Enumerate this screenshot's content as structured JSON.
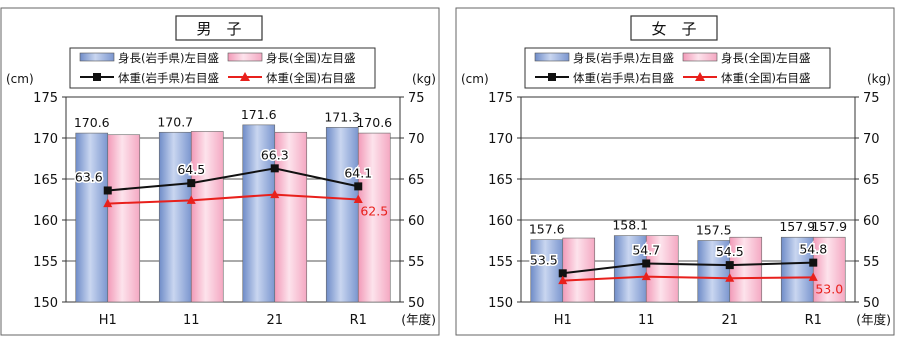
{
  "chart_data": [
    {
      "type": "bar",
      "title": "男　子",
      "categories": [
        "H1",
        "11",
        "21",
        "R1"
      ],
      "xlabel": "(年度)",
      "y_left_unit": "(cm)",
      "y_right_unit": "(kg)",
      "ylim_left": [
        150,
        175
      ],
      "ylim_right": [
        50,
        75
      ],
      "left_ticks": [
        150,
        155,
        160,
        165,
        170,
        175
      ],
      "right_ticks": [
        50,
        55,
        60,
        65,
        70,
        75
      ],
      "grid": true,
      "legend_placement": "top",
      "bar_series": [
        {
          "name": "身長(岩手県)左目盛",
          "values": [
            170.6,
            170.7,
            171.6,
            171.3
          ],
          "color": "#8aa4d6",
          "labels": [
            "170.6",
            "170.7",
            "171.6",
            "171.3"
          ]
        },
        {
          "name": "身長(全国)左目盛",
          "values": [
            170.4,
            170.8,
            170.7,
            170.6
          ],
          "color": "#f3b8cc",
          "labels": [
            "",
            "",
            "",
            "170.6"
          ]
        }
      ],
      "line_series": [
        {
          "name": "体重(岩手県)右目盛",
          "values": [
            63.6,
            64.5,
            66.3,
            64.1
          ],
          "color": "#111111",
          "marker": "square",
          "labels": [
            "63.6",
            "64.5",
            "66.3",
            "64.1"
          ]
        },
        {
          "name": "体重(全国)右目盛",
          "values": [
            62.0,
            62.4,
            63.1,
            62.5
          ],
          "color": "#e8201c",
          "marker": "triangle",
          "labels": [
            "",
            "",
            "",
            "62.5"
          ]
        }
      ]
    },
    {
      "type": "bar",
      "title": "女　子",
      "categories": [
        "H1",
        "11",
        "21",
        "R1"
      ],
      "xlabel": "(年度)",
      "y_left_unit": "(cm)",
      "y_right_unit": "(kg)",
      "ylim_left": [
        150,
        175
      ],
      "ylim_right": [
        50,
        75
      ],
      "left_ticks": [
        150,
        155,
        160,
        165,
        170,
        175
      ],
      "right_ticks": [
        50,
        55,
        60,
        65,
        70,
        75
      ],
      "grid": true,
      "legend_placement": "top",
      "bar_series": [
        {
          "name": "身長(岩手県)左目盛",
          "values": [
            157.6,
            158.1,
            157.5,
            157.9
          ],
          "color": "#8aa4d6",
          "labels": [
            "157.6",
            "158.1",
            "157.5",
            "157.9"
          ]
        },
        {
          "name": "身長(全国)左目盛",
          "values": [
            157.8,
            158.1,
            157.9,
            157.9
          ],
          "color": "#f3b8cc",
          "labels": [
            "",
            "",
            "",
            "157.9"
          ]
        }
      ],
      "line_series": [
        {
          "name": "体重(岩手県)右目盛",
          "values": [
            53.5,
            54.7,
            54.5,
            54.8
          ],
          "color": "#111111",
          "marker": "square",
          "labels": [
            "53.5",
            "54.7",
            "54.5",
            "54.8"
          ]
        },
        {
          "name": "体重(全国)右目盛",
          "values": [
            52.6,
            53.1,
            52.9,
            53.0
          ],
          "color": "#e8201c",
          "marker": "triangle",
          "labels": [
            "",
            "",
            "",
            "53.0"
          ]
        }
      ]
    }
  ]
}
